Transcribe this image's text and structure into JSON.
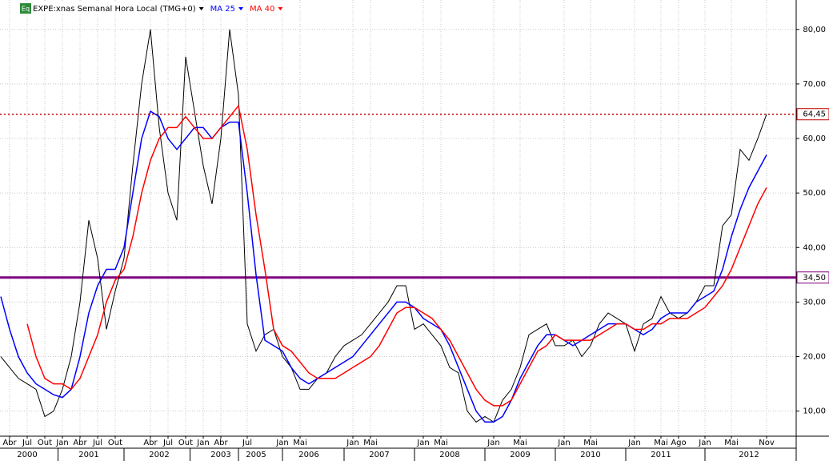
{
  "chart_data": {
    "type": "line",
    "badge": "Eq",
    "title": "EXPE:xnas Semanal Hora Local (TMG+0)",
    "categories": [
      null,
      "Abr",
      null,
      "Jul",
      null,
      "Out",
      null,
      "Jan",
      null,
      "Abr",
      null,
      "Jul",
      null,
      "Out",
      null,
      null,
      null,
      "Abr",
      null,
      "Jul",
      null,
      "Out",
      null,
      "Jan",
      null,
      "Abr",
      null,
      null,
      "Jul",
      null,
      null,
      null,
      "Jan",
      null,
      "Mai",
      null,
      null,
      null,
      null,
      null,
      "Jan",
      null,
      "Mai",
      null,
      null,
      null,
      null,
      null,
      "Jan",
      null,
      "Mai",
      null,
      null,
      null,
      null,
      null,
      "Jan",
      null,
      null,
      "Mai",
      null,
      null,
      null,
      null,
      "Jan",
      null,
      null,
      "Mai",
      null,
      null,
      null,
      null,
      "Jan",
      null,
      null,
      "Mai",
      null,
      "Ago",
      null,
      null,
      "Jan",
      null,
      null,
      "Mai",
      null,
      null,
      null,
      "Nov"
    ],
    "years": [
      null,
      null,
      null,
      "2000",
      null,
      null,
      null,
      null,
      null,
      null,
      "2001",
      null,
      null,
      null,
      null,
      null,
      null,
      null,
      "2002",
      null,
      null,
      null,
      null,
      null,
      null,
      "2003",
      null,
      null,
      null,
      "2005",
      null,
      null,
      null,
      null,
      null,
      "2006",
      null,
      null,
      null,
      null,
      null,
      null,
      null,
      "2007",
      null,
      null,
      null,
      null,
      null,
      null,
      null,
      "2008",
      null,
      null,
      null,
      null,
      null,
      null,
      null,
      "2009",
      null,
      null,
      null,
      null,
      null,
      null,
      null,
      "2010",
      null,
      null,
      null,
      null,
      null,
      null,
      null,
      "2011",
      null,
      null,
      null,
      null,
      null,
      null,
      null,
      null,
      null,
      "2012",
      null,
      null
    ],
    "series": [
      {
        "name": "EXPE:xnas",
        "color": "#000000",
        "values": [
          20,
          18,
          16,
          15,
          14,
          9,
          10,
          14,
          20,
          30,
          45,
          38,
          25,
          32,
          38,
          55,
          70,
          80,
          62,
          50,
          45,
          75,
          65,
          55,
          48,
          60,
          80,
          68,
          26,
          21,
          24,
          25,
          20,
          18,
          14,
          14,
          16,
          17,
          20,
          22,
          23,
          24,
          26,
          28,
          30,
          33,
          33,
          25,
          26,
          24,
          22,
          18,
          17,
          10,
          8,
          9,
          8,
          12,
          14,
          18,
          24,
          25,
          26,
          22,
          22,
          23,
          20,
          22,
          26,
          28,
          27,
          26,
          21,
          26,
          27,
          31,
          28,
          27,
          28,
          30,
          33,
          33,
          44,
          46,
          58,
          56,
          60,
          64.45
        ]
      },
      {
        "name": "MA 25",
        "color": "#0000ff",
        "values": [
          31,
          25,
          20,
          17,
          15,
          14,
          13,
          12.5,
          14,
          20,
          28,
          33,
          36,
          36,
          40,
          50,
          60,
          65,
          64,
          60,
          58,
          60,
          62,
          62,
          60,
          62,
          63,
          63,
          50,
          35,
          23,
          22,
          21,
          18,
          16,
          15,
          16,
          17,
          18,
          19,
          20,
          22,
          24,
          26,
          28,
          30,
          30,
          29,
          27,
          26,
          25,
          22,
          18,
          14,
          10,
          8,
          8,
          9,
          12,
          16,
          19,
          22,
          24,
          24,
          23,
          22,
          23,
          24,
          25,
          26,
          26,
          26,
          25,
          24,
          25,
          27,
          28,
          28,
          28,
          30,
          31,
          32,
          36,
          42,
          47,
          51,
          54,
          57
        ]
      },
      {
        "name": "MA 40",
        "color": "#ff0000",
        "values": [
          null,
          null,
          null,
          26,
          20,
          16,
          15,
          15,
          14,
          16,
          20,
          24,
          30,
          34,
          36,
          42,
          50,
          56,
          60,
          62,
          62,
          64,
          62,
          60,
          60,
          62,
          64,
          66,
          58,
          46,
          36,
          25,
          22,
          21,
          19,
          17,
          16,
          16,
          16,
          17,
          18,
          19,
          20,
          22,
          25,
          28,
          29,
          29,
          28,
          27,
          25,
          23,
          20,
          17,
          14,
          12,
          11,
          11,
          12,
          15,
          18,
          21,
          22,
          24,
          23,
          23,
          23,
          23,
          24,
          25,
          26,
          26,
          25,
          25,
          26,
          26,
          27,
          27,
          27,
          28,
          29,
          31,
          33,
          36,
          40,
          44,
          48,
          51
        ]
      }
    ],
    "ylim": [
      5.4,
      85.4
    ],
    "yticks": [
      {
        "value": 10,
        "label": "10,00"
      },
      {
        "value": 20,
        "label": "20,00"
      },
      {
        "value": 30,
        "label": "30,00"
      },
      {
        "value": 40,
        "label": "40,00"
      },
      {
        "value": 50,
        "label": "50,00"
      },
      {
        "value": 60,
        "label": "60,00"
      },
      {
        "value": 70,
        "label": "70,00"
      },
      {
        "value": 80,
        "label": "80,00"
      }
    ],
    "hlines": [
      {
        "value": 64.45,
        "label": "64,45",
        "color": "#c00000",
        "style": "dotted"
      },
      {
        "value": 34.5,
        "label": "34,50",
        "color": "#800080",
        "style": "solid"
      }
    ],
    "grid": true
  }
}
